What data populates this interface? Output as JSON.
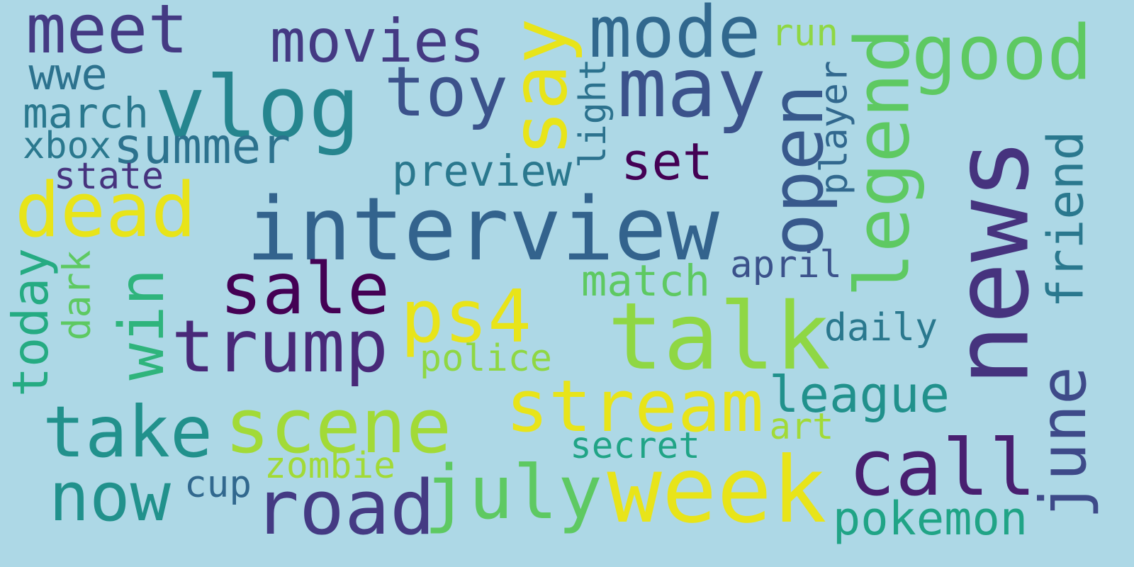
{
  "background": "#add8e6",
  "words": [
    {
      "text": "news",
      "color": "#46337e",
      "orientation": "vertical"
    },
    {
      "text": "interview",
      "color": "#33638d",
      "orientation": "horizontal"
    },
    {
      "text": "talk",
      "color": "#8fd744",
      "orientation": "horizontal"
    },
    {
      "text": "week",
      "color": "#e8e419",
      "orientation": "horizontal"
    },
    {
      "text": "stream",
      "color": "#e8e419",
      "orientation": "horizontal"
    },
    {
      "text": "vlog",
      "color": "#25858e",
      "orientation": "horizontal"
    },
    {
      "text": "scene",
      "color": "#a2da37",
      "orientation": "horizontal"
    },
    {
      "text": "july",
      "color": "#5ec962",
      "orientation": "horizontal"
    },
    {
      "text": "road",
      "color": "#443a83",
      "orientation": "horizontal"
    },
    {
      "text": "may",
      "color": "#3b528b",
      "orientation": "horizontal"
    },
    {
      "text": "call",
      "color": "#481f70",
      "orientation": "horizontal"
    },
    {
      "text": "legend",
      "color": "#5ec962",
      "orientation": "vertical"
    },
    {
      "text": "open",
      "color": "#38598c",
      "orientation": "vertical"
    },
    {
      "text": "movies",
      "color": "#443a83",
      "orientation": "horizontal"
    },
    {
      "text": "mode",
      "color": "#31688e",
      "orientation": "horizontal"
    },
    {
      "text": "meet",
      "color": "#443a83",
      "orientation": "horizontal"
    },
    {
      "text": "good",
      "color": "#5ec962",
      "orientation": "horizontal"
    },
    {
      "text": "say",
      "color": "#e8e419",
      "orientation": "vertical"
    },
    {
      "text": "toy",
      "color": "#3b528b",
      "orientation": "horizontal"
    },
    {
      "text": "trump",
      "color": "#482878",
      "orientation": "horizontal"
    },
    {
      "text": "sale",
      "color": "#440154",
      "orientation": "horizontal"
    },
    {
      "text": "ps4",
      "color": "#e8e419",
      "orientation": "horizontal"
    },
    {
      "text": "dead",
      "color": "#e8e419",
      "orientation": "horizontal"
    },
    {
      "text": "win",
      "color": "#2fb47c",
      "orientation": "vertical"
    },
    {
      "text": "take",
      "color": "#21918c",
      "orientation": "horizontal"
    },
    {
      "text": "now",
      "color": "#21918c",
      "orientation": "horizontal"
    },
    {
      "text": "june",
      "color": "#3e4a89",
      "orientation": "vertical"
    },
    {
      "text": "league",
      "color": "#21918c",
      "orientation": "horizontal"
    },
    {
      "text": "pokemon",
      "color": "#20a486",
      "orientation": "horizontal"
    },
    {
      "text": "friend",
      "color": "#2a788e",
      "orientation": "vertical"
    },
    {
      "text": "summer",
      "color": "#2c728e",
      "orientation": "horizontal"
    },
    {
      "text": "match",
      "color": "#5ec962",
      "orientation": "horizontal"
    },
    {
      "text": "preview",
      "color": "#2a788e",
      "orientation": "horizontal"
    },
    {
      "text": "set",
      "color": "#440154",
      "orientation": "horizontal"
    },
    {
      "text": "today",
      "color": "#25ab82",
      "orientation": "vertical"
    },
    {
      "text": "wwe",
      "color": "#2c728e",
      "orientation": "horizontal"
    },
    {
      "text": "march",
      "color": "#2a788e",
      "orientation": "horizontal"
    },
    {
      "text": "xbox",
      "color": "#2a788e",
      "orientation": "horizontal"
    },
    {
      "text": "state",
      "color": "#46337e",
      "orientation": "horizontal"
    },
    {
      "text": "police",
      "color": "#8fd744",
      "orientation": "horizontal"
    },
    {
      "text": "secret",
      "color": "#20a486",
      "orientation": "horizontal"
    },
    {
      "text": "zombie",
      "color": "#a2da37",
      "orientation": "horizontal"
    },
    {
      "text": "cup",
      "color": "#31688e",
      "orientation": "horizontal"
    },
    {
      "text": "daily",
      "color": "#2a788e",
      "orientation": "horizontal"
    },
    {
      "text": "april",
      "color": "#3b528b",
      "orientation": "horizontal"
    },
    {
      "text": "player",
      "color": "#31688e",
      "orientation": "vertical"
    },
    {
      "text": "light",
      "color": "#2c728e",
      "orientation": "vertical"
    },
    {
      "text": "dark",
      "color": "#5ec962",
      "orientation": "vertical"
    },
    {
      "text": "run",
      "color": "#8fd744",
      "orientation": "horizontal"
    },
    {
      "text": "art",
      "color": "#a2da37",
      "orientation": "horizontal"
    }
  ]
}
